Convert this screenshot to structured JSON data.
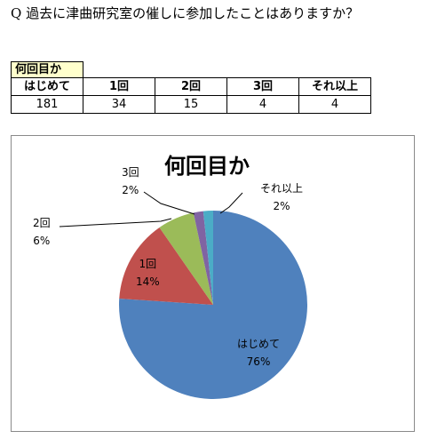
{
  "question": "Q 過去に津曲研究室の催しに参加したことはありますか？",
  "table": {
    "title": "何回目か",
    "headers": [
      "はじめて",
      "1回",
      "2回",
      "3回",
      "それ以上"
    ],
    "values": [
      "181",
      "34",
      "15",
      "4",
      "4"
    ]
  },
  "chart_data": {
    "type": "pie",
    "title": "何回目か",
    "slices": [
      {
        "label": "はじめて",
        "value": 181,
        "percent": "76%",
        "color": "#4f81bd"
      },
      {
        "label": "1回",
        "value": 34,
        "percent": "14%",
        "color": "#c0504d"
      },
      {
        "label": "2回",
        "value": 15,
        "percent": "6%",
        "color": "#9bbb59"
      },
      {
        "label": "3回",
        "value": 4,
        "percent": "2%",
        "color": "#8064a2"
      },
      {
        "label": "それ以上",
        "value": 4,
        "percent": "2%",
        "color": "#4bacc6"
      }
    ],
    "legend": "none"
  }
}
